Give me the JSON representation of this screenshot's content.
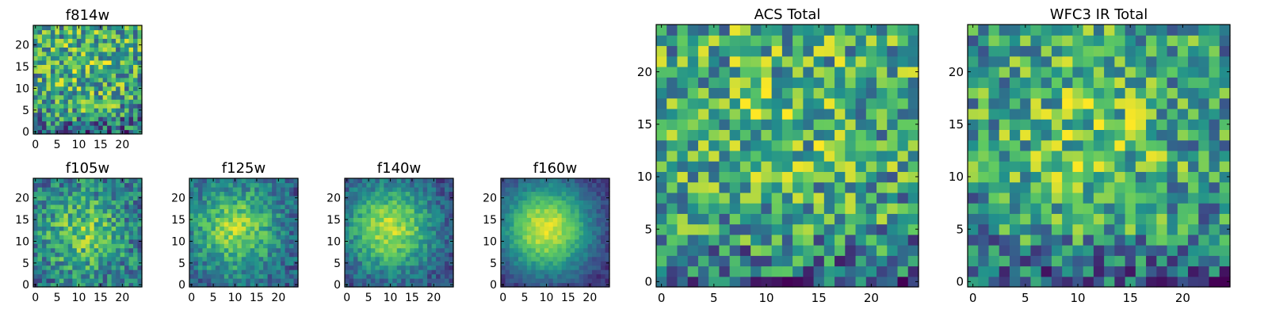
{
  "figure": {
    "colormap": "viridis",
    "colors": {
      "stops": [
        "#440154",
        "#3b528b",
        "#21918c",
        "#5ec962",
        "#fde725"
      ],
      "frame": "#000000",
      "background": "#ffffff"
    }
  },
  "chart_data": [
    {
      "type": "heatmap",
      "title": "f814w",
      "pixels": 25,
      "xticks": [
        0,
        5,
        10,
        15,
        20
      ],
      "yticks": [
        0,
        5,
        10,
        15,
        20
      ],
      "xlim": [
        0,
        25
      ],
      "ylim": [
        0,
        25
      ],
      "intensity_model": {
        "pattern": "noisy flat field, darker bottom rows, bright knots near rows 8 and 12",
        "peak_x": 12,
        "peak_y": 12,
        "concentration": 0.15,
        "noise": 0.35
      }
    },
    {
      "type": "heatmap",
      "title": "f105w",
      "pixels": 25,
      "xticks": [
        0,
        5,
        10,
        15,
        20
      ],
      "yticks": [
        0,
        5,
        10,
        15,
        20
      ],
      "xlim": [
        0,
        25
      ],
      "ylim": [
        0,
        25
      ],
      "intensity_model": {
        "pattern": "diffuse source, peak near center",
        "peak_x": 11,
        "peak_y": 12,
        "concentration": 0.45,
        "noise": 0.25
      }
    },
    {
      "type": "heatmap",
      "title": "f125w",
      "pixels": 25,
      "xticks": [
        0,
        5,
        10,
        15,
        20
      ],
      "yticks": [
        0,
        5,
        10,
        15,
        20
      ],
      "xlim": [
        0,
        25
      ],
      "ylim": [
        0,
        25
      ],
      "intensity_model": {
        "pattern": "concentrated source, peak near center",
        "peak_x": 10,
        "peak_y": 13,
        "concentration": 0.65,
        "noise": 0.18
      }
    },
    {
      "type": "heatmap",
      "title": "f140w",
      "pixels": 25,
      "xticks": [
        0,
        5,
        10,
        15,
        20
      ],
      "yticks": [
        0,
        5,
        10,
        15,
        20
      ],
      "xlim": [
        0,
        25
      ],
      "ylim": [
        0,
        25
      ],
      "intensity_model": {
        "pattern": "concentrated source, peak near center",
        "peak_x": 10,
        "peak_y": 13,
        "concentration": 0.8,
        "noise": 0.14
      }
    },
    {
      "type": "heatmap",
      "title": "f160w",
      "pixels": 25,
      "xticks": [
        0,
        5,
        10,
        15,
        20
      ],
      "yticks": [
        0,
        5,
        10,
        15,
        20
      ],
      "xlim": [
        0,
        25
      ],
      "ylim": [
        0,
        25
      ],
      "intensity_model": {
        "pattern": "smooth compact source, peak near center",
        "peak_x": 10,
        "peak_y": 13,
        "concentration": 1.0,
        "noise": 0.08
      }
    },
    {
      "type": "heatmap",
      "title": "ACS Total",
      "pixels": 25,
      "xticks": [
        0,
        5,
        10,
        15,
        20
      ],
      "yticks": [
        0,
        5,
        10,
        15,
        20
      ],
      "xlim": [
        0,
        25
      ],
      "ylim": [
        0,
        25
      ],
      "intensity_model": {
        "pattern": "noisy flat field, darker bottom rows, bright knots near rows 8 and 11",
        "peak_x": 12,
        "peak_y": 12,
        "concentration": 0.15,
        "noise": 0.35
      }
    },
    {
      "type": "heatmap",
      "title": "WFC3 IR Total",
      "pixels": 25,
      "xticks": [
        0,
        5,
        10,
        15,
        20
      ],
      "yticks": [
        0,
        5,
        10,
        15,
        20
      ],
      "xlim": [
        0,
        25
      ],
      "ylim": [
        0,
        25
      ],
      "intensity_model": {
        "pattern": "noisy field, brighter center rows 10-13",
        "peak_x": 11,
        "peak_y": 12,
        "concentration": 0.3,
        "noise": 0.32
      }
    }
  ]
}
